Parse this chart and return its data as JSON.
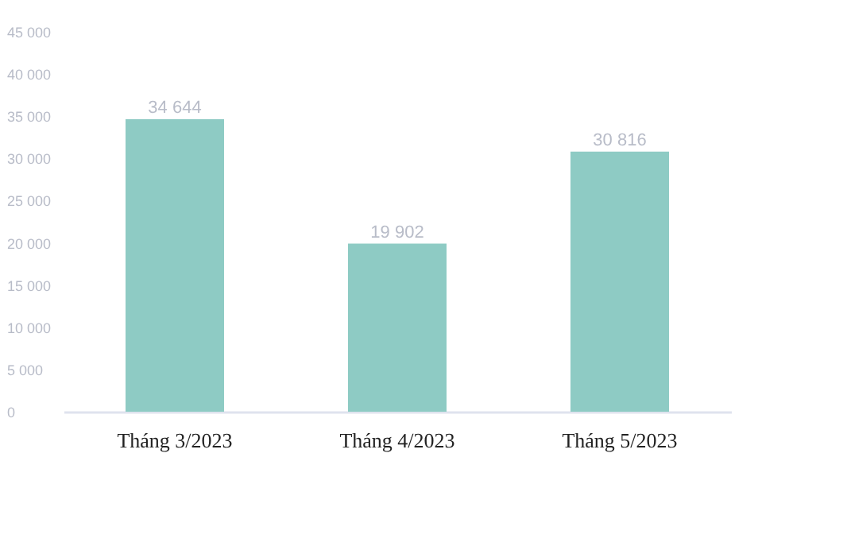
{
  "chart_data": {
    "type": "bar",
    "categories": [
      "Tháng 3/2023",
      "Tháng 4/2023",
      "Tháng 5/2023"
    ],
    "values": [
      34644,
      19902,
      30816
    ],
    "color": "#8ecbc4",
    "ylim": [
      0,
      45000
    ],
    "yticks": [
      0,
      5000,
      10000,
      15000,
      20000,
      25000,
      30000,
      35000,
      40000,
      45000
    ],
    "data_labels": true,
    "grid": false
  }
}
